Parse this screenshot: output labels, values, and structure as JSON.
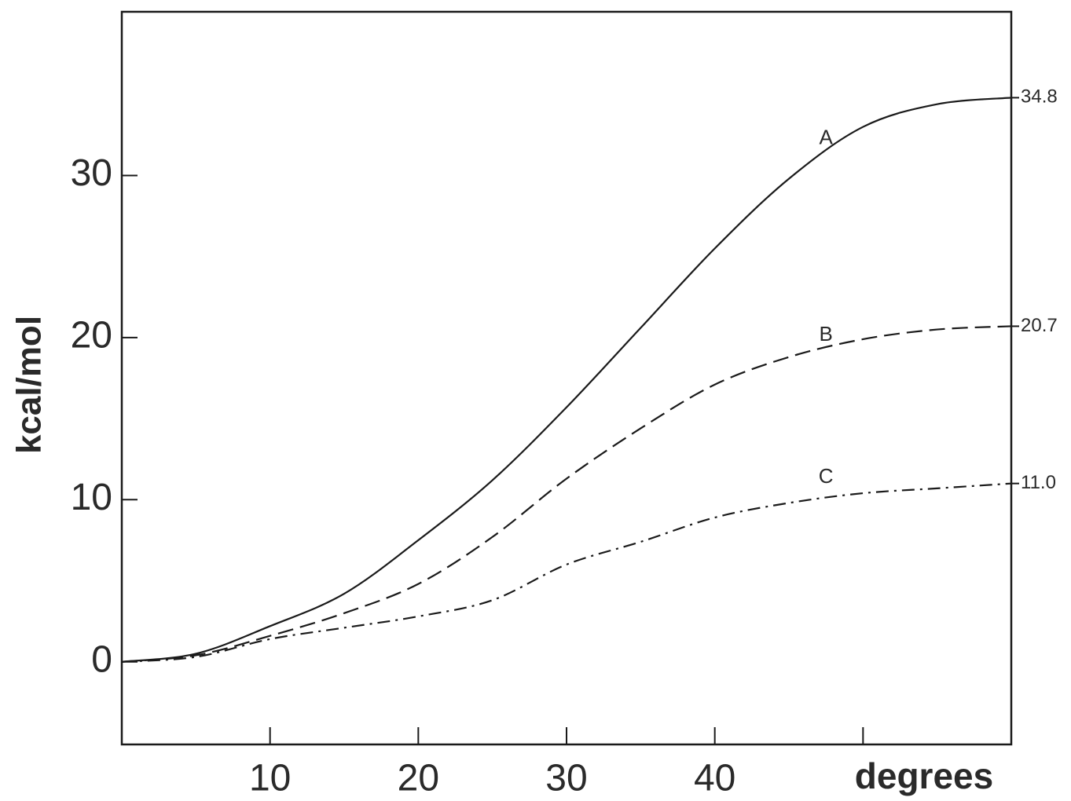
{
  "chart_data": {
    "type": "line",
    "x_label": "degrees",
    "y_label": "kcal/mol",
    "x": [
      0,
      5,
      10,
      15,
      20,
      25,
      30,
      35,
      40,
      45,
      50,
      55,
      60
    ],
    "series": [
      {
        "name": "A",
        "color": "#1a1a1a",
        "style": "solid",
        "values": [
          0,
          0.5,
          2.2,
          4.2,
          7.5,
          11.2,
          15.7,
          20.6,
          25.5,
          29.8,
          33.0,
          34.4,
          34.8
        ],
        "value_labels": [
          null,
          null,
          null,
          null,
          null,
          null,
          null,
          null,
          null,
          null,
          null,
          null,
          "34.8"
        ]
      },
      {
        "name": "B",
        "color": "#1a1a1a",
        "style": "dashed",
        "values": [
          0,
          0.4,
          1.6,
          3.0,
          4.8,
          7.7,
          11.3,
          14.4,
          17.1,
          18.8,
          19.9,
          20.5,
          20.7
        ],
        "value_labels": [
          null,
          null,
          null,
          null,
          null,
          null,
          null,
          null,
          null,
          null,
          null,
          null,
          "20.7"
        ]
      },
      {
        "name": "C",
        "color": "#1a1a1a",
        "style": "dashdot",
        "values": [
          0,
          0.3,
          1.4,
          2.1,
          2.8,
          3.8,
          6.0,
          7.4,
          8.9,
          9.8,
          10.4,
          10.7,
          11.0
        ],
        "value_labels": [
          null,
          null,
          null,
          null,
          null,
          null,
          null,
          null,
          null,
          null,
          null,
          null,
          "11.0"
        ]
      }
    ],
    "xlim": [
      0,
      60
    ],
    "ylim": [
      -5.1,
      40.1
    ],
    "xticks": [
      10,
      20,
      30,
      40,
      {
        "value": 50,
        "label": null
      }
    ],
    "yticks": [
      0,
      10,
      20,
      30
    ],
    "grid": false
  }
}
